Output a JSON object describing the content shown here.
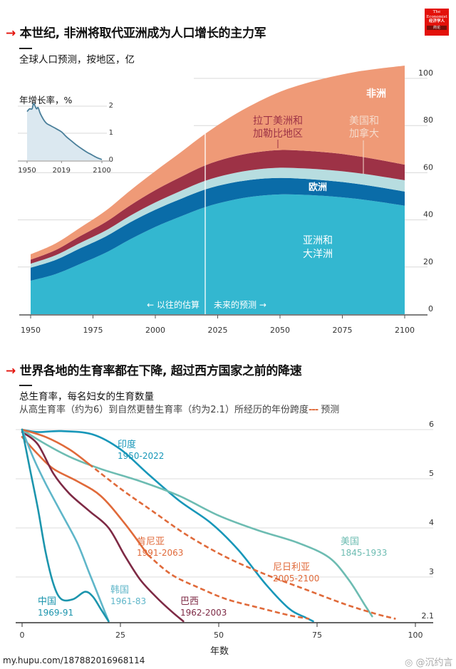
{
  "brand": {
    "logo_line1": "The",
    "logo_line2": "Economist",
    "logo_cn": "经济学人",
    "logo_sub": "商论",
    "accent_color": "#e3120b"
  },
  "section1": {
    "arrow": "→",
    "title": "本世纪, 非洲将取代亚洲成为人口增长的主力军",
    "subtitle": "全球人口预测，按地区，亿"
  },
  "section2": {
    "arrow": "→",
    "title": "世界各地的生育率都在下降, 超过西方国家之前的降速",
    "subtitle": "总生育率，每名妇女的生育数量",
    "description": "从高生育率（约为6）到自然更替生育率（约为2.1）所经历的年份跨度",
    "legend_dash": "---",
    "legend_forecast": "预测"
  },
  "footer": {
    "source_url": "my.hupu.com/187882016968114",
    "watermark": "@沉约言"
  },
  "chart_data": [
    {
      "type": "area",
      "stacked": true,
      "title": "全球人口预测，按地区，亿",
      "xlabel": "",
      "ylabel": "亿",
      "x": [
        1950,
        1960,
        1970,
        1980,
        1990,
        2000,
        2010,
        2020,
        2030,
        2040,
        2050,
        2060,
        2070,
        2080,
        2090,
        2100
      ],
      "xticks": [
        "1950",
        "1975",
        "2000",
        "2025",
        "2050",
        "2075",
        "2100"
      ],
      "yticks": [
        "0",
        "20",
        "40",
        "60",
        "80",
        "100"
      ],
      "xlim": [
        1950,
        2100
      ],
      "ylim": [
        0,
        110
      ],
      "grid": true,
      "divider_year": 2020,
      "divider_left_label": "← 以往的估算",
      "divider_right_label": "未来的预测 →",
      "series": [
        {
          "name": "亚洲和大洋洲",
          "color": "#33b7d0",
          "values": [
            14.2,
            17.0,
            21.4,
            26.0,
            31.8,
            37.0,
            41.4,
            45.4,
            48.2,
            50.0,
            50.8,
            50.6,
            50.0,
            49.0,
            47.6,
            46.0
          ]
        },
        {
          "name": "欧洲",
          "color": "#0a6ca8",
          "values": [
            5.5,
            6.0,
            6.6,
            6.9,
            7.2,
            7.3,
            7.4,
            7.5,
            7.4,
            7.2,
            7.0,
            6.8,
            6.6,
            6.4,
            6.2,
            6.0
          ]
        },
        {
          "name": "美国和加拿大",
          "color": "#b7dde0",
          "values": [
            1.7,
            2.0,
            2.3,
            2.5,
            2.8,
            3.1,
            3.4,
            3.7,
            3.9,
            4.1,
            4.3,
            4.4,
            4.5,
            4.6,
            4.7,
            4.8
          ]
        },
        {
          "name": "拉丁美洲和加勒比地区",
          "color": "#9d3246",
          "values": [
            1.7,
            2.2,
            2.9,
            3.6,
            4.4,
            5.2,
            5.9,
            6.5,
            7.0,
            7.3,
            7.5,
            7.5,
            7.4,
            7.2,
            6.9,
            6.6
          ]
        },
        {
          "name": "非洲",
          "color": "#ef9a77",
          "values": [
            2.3,
            2.8,
            3.6,
            4.8,
            6.3,
            8.1,
            10.4,
            13.4,
            17.0,
            20.8,
            24.7,
            28.5,
            32.0,
            35.5,
            38.8,
            42.0
          ]
        }
      ],
      "labels": {
        "africa": "非洲",
        "latam_line1": "拉丁美洲和",
        "latam_line2": "加勒比地区",
        "namerica_line1": "美国和",
        "namerica_line2": "加拿大",
        "europe": "欧洲",
        "asia_line1": "亚洲和",
        "asia_line2": "大洋洲"
      },
      "inset": {
        "type": "area",
        "title": "年增长率，%",
        "xticks": [
          "1950",
          "2019",
          "2100"
        ],
        "yticks": [
          "0",
          "1",
          "2"
        ],
        "xlim": [
          1950,
          2100
        ],
        "ylim": [
          0,
          2
        ],
        "x": [
          1950,
          1955,
          1960,
          1963,
          1966,
          1969,
          1972,
          1976,
          1980,
          1985,
          1990,
          1995,
          2000,
          2010,
          2019,
          2030,
          2040,
          2050,
          2060,
          2070,
          2080,
          2090,
          2100
        ],
        "values": [
          1.8,
          1.9,
          1.9,
          2.1,
          2.0,
          1.9,
          1.95,
          1.75,
          1.6,
          1.45,
          1.35,
          1.3,
          1.25,
          1.15,
          1.05,
          0.85,
          0.7,
          0.55,
          0.42,
          0.3,
          0.2,
          0.1,
          0.03
        ],
        "color": "#4a7f9a",
        "fill": "#dbe8f0"
      }
    },
    {
      "type": "line",
      "title": "总生育率，每名妇女的生育数量",
      "xlabel": "年数",
      "ylabel": "",
      "xticks": [
        "0",
        "25",
        "50",
        "75",
        "100"
      ],
      "yticks": [
        "2.1",
        "3",
        "4",
        "5",
        "6"
      ],
      "xlim": [
        0,
        100
      ],
      "ylim": [
        2.1,
        6
      ],
      "grid": true,
      "series": [
        {
          "name": "印度",
          "period": "1950-2022",
          "color": "#1897b9",
          "forecast_from": null,
          "x": [
            0,
            4,
            10,
            18,
            25,
            32,
            40,
            48,
            55,
            62,
            68,
            72,
            74
          ],
          "y": [
            6.0,
            5.95,
            5.97,
            5.9,
            5.6,
            5.1,
            4.55,
            4.1,
            3.55,
            2.85,
            2.35,
            2.18,
            2.1
          ]
        },
        {
          "name": "美国",
          "period": "1845-1933",
          "color": "#6dbcb2",
          "forecast_from": null,
          "x": [
            0,
            5,
            12,
            20,
            30,
            40,
            50,
            60,
            70,
            78,
            83,
            87,
            89
          ],
          "y": [
            6.0,
            5.75,
            5.45,
            5.2,
            4.95,
            4.65,
            4.25,
            3.95,
            3.7,
            3.4,
            2.95,
            2.45,
            2.2
          ]
        },
        {
          "name": "肯尼亚",
          "period": "1991-2063",
          "color": "#e06a3a",
          "forecast_from": 32,
          "x": [
            0,
            4,
            8,
            14,
            20,
            26,
            32,
            38,
            45,
            52,
            60,
            68,
            73
          ],
          "y": [
            5.85,
            5.5,
            5.2,
            4.95,
            4.65,
            4.1,
            3.45,
            3.05,
            2.78,
            2.55,
            2.38,
            2.22,
            2.15
          ]
        },
        {
          "name": "尼日利亚",
          "period": "2005-2100",
          "color": "#e06a3a",
          "forecast_from": 17,
          "x": [
            0,
            6,
            12,
            17,
            25,
            33,
            42,
            52,
            62,
            72,
            82,
            90,
            95
          ],
          "y": [
            6.0,
            5.85,
            5.6,
            5.3,
            4.8,
            4.35,
            3.85,
            3.4,
            3.05,
            2.75,
            2.45,
            2.25,
            2.15
          ]
        },
        {
          "name": "巴西",
          "period": "1962-2003",
          "color": "#7e2a45",
          "forecast_from": null,
          "x": [
            0,
            4,
            8,
            12,
            17,
            22,
            26,
            30,
            34,
            38,
            41
          ],
          "y": [
            5.95,
            5.7,
            5.1,
            4.7,
            4.35,
            4.0,
            3.45,
            2.95,
            2.6,
            2.3,
            2.1
          ]
        },
        {
          "name": "韩国",
          "period": "1961-83",
          "color": "#5fb6c9",
          "forecast_from": null,
          "x": [
            0,
            3,
            6,
            10,
            14,
            17,
            20,
            22
          ],
          "y": [
            6.0,
            5.4,
            4.9,
            4.3,
            3.7,
            3.1,
            2.5,
            2.1
          ]
        },
        {
          "name": "中国",
          "period": "1969-91",
          "color": "#1c95ad",
          "forecast_from": null,
          "x": [
            0,
            2,
            4,
            6,
            8,
            10,
            13,
            16,
            18,
            20,
            22
          ],
          "y": [
            6.0,
            5.2,
            4.4,
            3.5,
            2.85,
            2.55,
            2.55,
            2.7,
            2.6,
            2.35,
            2.1
          ]
        }
      ]
    }
  ]
}
